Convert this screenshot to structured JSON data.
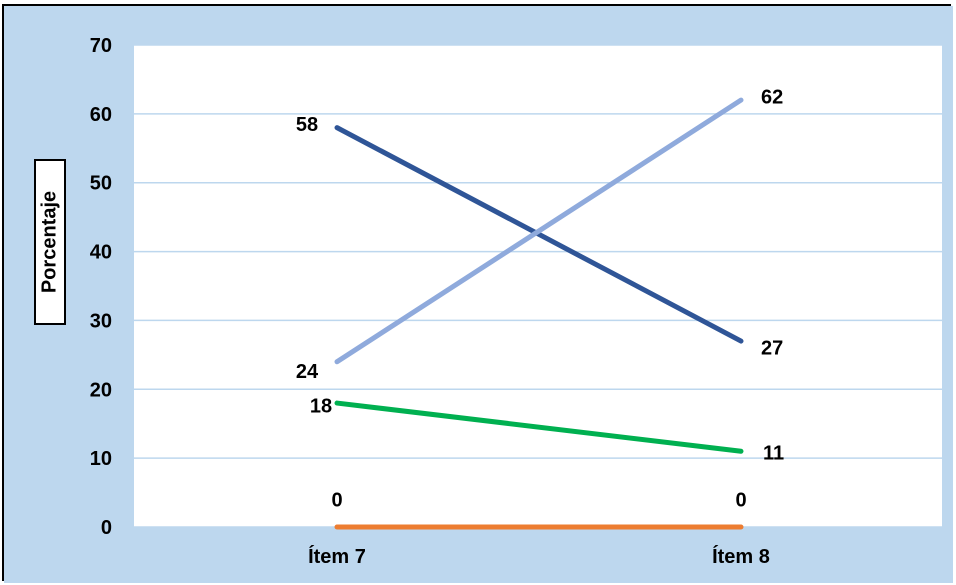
{
  "colors": {
    "background": "#bdd7ee",
    "plot_area": "#ffffff",
    "gridline": "#bdd7ee"
  },
  "chart_data": {
    "type": "line",
    "ylabel": "Porcentaje",
    "xlabel": "",
    "title": "",
    "ylim": [
      0,
      70
    ],
    "yticks": [
      "0",
      "10",
      "20",
      "30",
      "40",
      "50",
      "60",
      "70"
    ],
    "categories": [
      "Ítem 7",
      "Ítem 8"
    ],
    "grid": true,
    "legend": "none",
    "series": [
      {
        "values": [
          58,
          27
        ],
        "color": "#2f5597"
      },
      {
        "values": [
          24,
          62
        ],
        "color": "#8faadc"
      },
      {
        "values": [
          18,
          11
        ],
        "color": "#00b050"
      },
      {
        "values": [
          0,
          0
        ],
        "color": "#ed7d31"
      }
    ]
  }
}
